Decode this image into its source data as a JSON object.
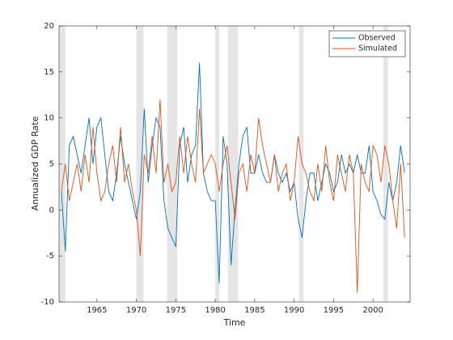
{
  "chart_data": {
    "type": "line",
    "xlabel": "Time",
    "ylabel": "Annualized GDP Rate",
    "x": [
      1960.5,
      1961,
      1961.5,
      1962,
      1962.5,
      1963,
      1963.5,
      1964,
      1964.5,
      1965,
      1965.5,
      1966,
      1966.5,
      1967,
      1967.5,
      1968,
      1968.5,
      1969,
      1969.5,
      1970,
      1970.5,
      1971,
      1971.5,
      1972,
      1972.5,
      1973,
      1973.5,
      1974,
      1974.5,
      1975,
      1975.5,
      1976,
      1976.5,
      1977,
      1977.5,
      1978,
      1978.5,
      1979,
      1979.5,
      1980,
      1980.5,
      1981,
      1981.5,
      1982,
      1982.5,
      1983,
      1983.5,
      1984,
      1984.5,
      1985,
      1985.5,
      1986,
      1986.5,
      1987,
      1987.5,
      1988,
      1988.5,
      1989,
      1989.5,
      1990,
      1990.5,
      1991,
      1991.5,
      1992,
      1992.5,
      1993,
      1993.5,
      1994,
      1994.5,
      1995,
      1995.5,
      1996,
      1996.5,
      1997,
      1997.5,
      1998,
      1998.5,
      1999,
      1999.5,
      2000,
      2000.5,
      2001,
      2001.5,
      2002,
      2002.5,
      2003,
      2003.5,
      2004
    ],
    "series": [
      {
        "name": "Observed",
        "color": "#0072bd",
        "values": [
          2,
          -4.5,
          7,
          8,
          6,
          4,
          7,
          10,
          5,
          9,
          10,
          6,
          2,
          1,
          4,
          8,
          5,
          3,
          1,
          -1,
          2,
          11,
          3,
          7,
          10,
          9,
          1,
          -2,
          -3,
          -4,
          7,
          9,
          3,
          6,
          7,
          16,
          4,
          2,
          1,
          1,
          -8,
          8,
          5,
          -6,
          0,
          5,
          8,
          9,
          4,
          4,
          6,
          4,
          3,
          3,
          6,
          4,
          3,
          4,
          2,
          3,
          -1,
          -3,
          1,
          4,
          4,
          1,
          3,
          5,
          4,
          2,
          3,
          6,
          4,
          5,
          4,
          6,
          4,
          4,
          7,
          2,
          1,
          -0.5,
          -1,
          3,
          1,
          3,
          7,
          4
        ]
      },
      {
        "name": "Simulated",
        "color": "#d95319",
        "values": [
          2,
          5,
          1,
          3,
          5,
          2,
          6,
          3,
          9,
          4,
          1,
          2,
          5,
          7,
          3,
          9,
          3,
          5,
          2,
          0,
          -5,
          6,
          4,
          8,
          4,
          12,
          3,
          5,
          2,
          3,
          8,
          4,
          8,
          5,
          3,
          11,
          4,
          5,
          6,
          5,
          2,
          5,
          7,
          3,
          -1,
          4,
          5,
          2,
          6,
          4,
          10,
          7,
          5,
          3,
          6,
          2,
          4,
          5,
          1,
          3,
          8,
          5,
          4,
          2,
          1,
          5,
          2,
          7,
          3,
          1,
          6,
          4,
          2,
          6,
          4,
          -9,
          5,
          3,
          2,
          7,
          6,
          3,
          7,
          5,
          1,
          -2,
          5,
          -3
        ]
      }
    ],
    "shaded_regions": [
      [
        1960.2,
        1961.0
      ],
      [
        1970.0,
        1970.9
      ],
      [
        1973.9,
        1975.2
      ],
      [
        1980.0,
        1980.5
      ],
      [
        1981.6,
        1982.9
      ],
      [
        1990.6,
        1991.2
      ],
      [
        2001.3,
        2001.9
      ]
    ],
    "shade_color": "#e5e5e5",
    "xlim": [
      1960.2,
      2004.7
    ],
    "xticks": [
      1965,
      1970,
      1975,
      1980,
      1985,
      1990,
      1995,
      2000
    ],
    "ylim": [
      -10,
      20
    ],
    "yticks": [
      -10,
      -5,
      0,
      5,
      10,
      15,
      20
    ],
    "legend": "northeast"
  }
}
